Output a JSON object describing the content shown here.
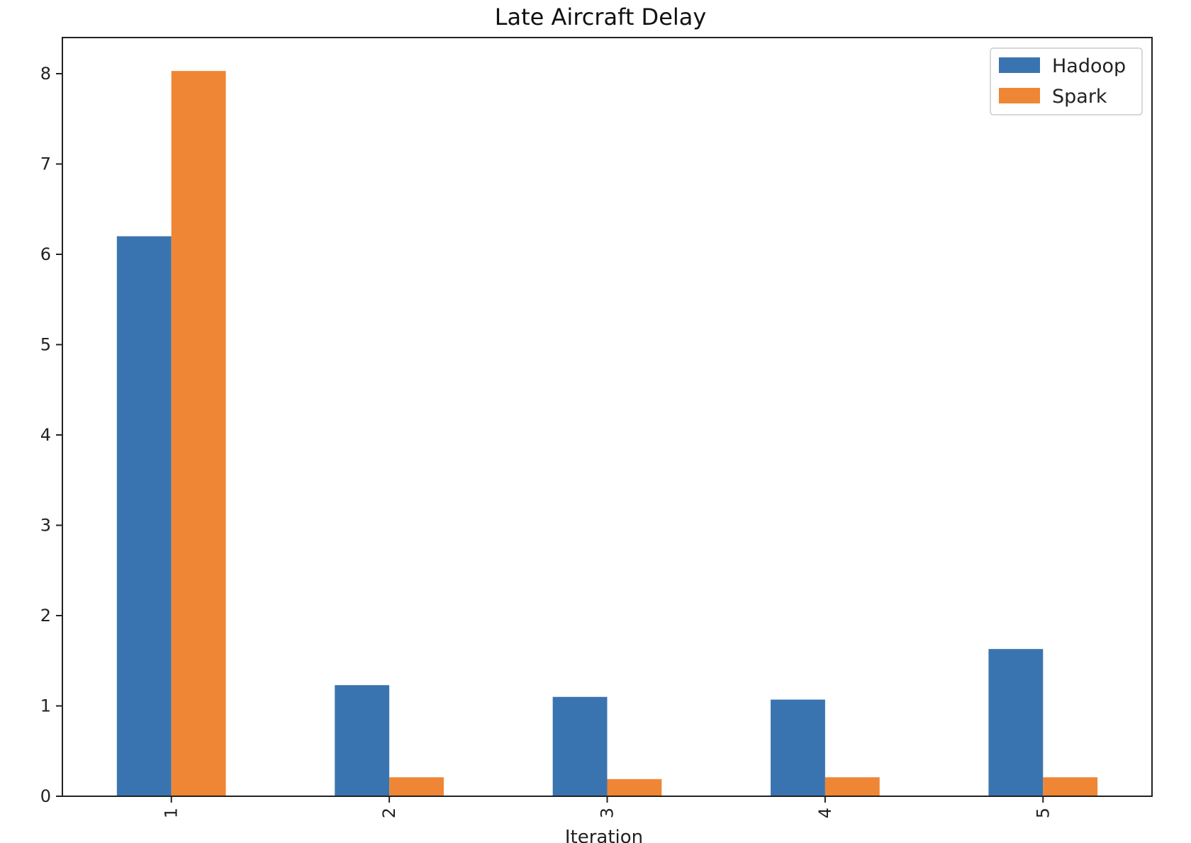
{
  "chart_data": {
    "type": "bar",
    "title": "Late Aircraft Delay",
    "xlabel": "Iteration",
    "ylabel": "",
    "categories": [
      "1",
      "2",
      "3",
      "4",
      "5"
    ],
    "series": [
      {
        "name": "Hadoop",
        "color": "#3a74b0",
        "values": [
          6.2,
          1.23,
          1.1,
          1.07,
          1.63
        ]
      },
      {
        "name": "Spark",
        "color": "#ee8635",
        "values": [
          8.03,
          0.21,
          0.19,
          0.21,
          0.21
        ]
      }
    ],
    "ylim": [
      0,
      8.4
    ],
    "yticks": [
      0,
      1,
      2,
      3,
      4,
      5,
      6,
      7,
      8
    ],
    "xtick_rotation": 90,
    "grid": false,
    "legend_position": "top-right"
  }
}
